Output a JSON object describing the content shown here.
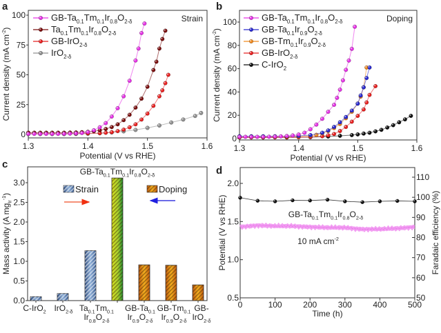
{
  "colors": {
    "magenta": "#e633e6",
    "brown": "#7a0e0e",
    "red": "#e82020",
    "gray": "#909090",
    "blue": "#2a2ad0",
    "orange": "#f08a20",
    "black": "#111111",
    "pink_line": "#f08cf0",
    "strain_arrow": "#f26b4a",
    "doping_arrow": "#3a3ae0"
  },
  "chart_data": [
    {
      "panel": "a",
      "type": "line",
      "annotation": "Strain",
      "xlabel": "Potential (V vs RHE)",
      "ylabel": "Current density (mA cm^{-2})",
      "xlim": [
        1.3,
        1.6
      ],
      "ylim": [
        -5,
        105
      ],
      "xticks": [
        "1.3",
        "1.4",
        "1.5",
        "1.6"
      ],
      "yticks": [
        "0",
        "25",
        "50",
        "75",
        "100"
      ],
      "legend": "top-left",
      "series": [
        {
          "name": "GB-Ta_{0.1}Tm_{0.1}Ir_{0.8}O_{2-δ}",
          "color": "magenta",
          "x": [
            1.3,
            1.31,
            1.32,
            1.33,
            1.34,
            1.35,
            1.36,
            1.37,
            1.38,
            1.39,
            1.4,
            1.41,
            1.42,
            1.43,
            1.44,
            1.45,
            1.46,
            1.47,
            1.48,
            1.485,
            1.49,
            1.495
          ],
          "y": [
            0.5,
            0.5,
            0.5,
            0.5,
            0.5,
            0.5,
            0.6,
            0.7,
            0.9,
            1.2,
            2,
            3.5,
            6,
            9.5,
            15,
            22,
            32,
            45,
            62,
            72,
            85,
            93
          ]
        },
        {
          "name": "Ta_{0.1}Tm_{0.1}Ir_{0.8}O_{2-δ}",
          "color": "brown",
          "x": [
            1.3,
            1.31,
            1.32,
            1.33,
            1.34,
            1.35,
            1.36,
            1.37,
            1.38,
            1.39,
            1.4,
            1.41,
            1.42,
            1.43,
            1.44,
            1.45,
            1.46,
            1.47,
            1.48,
            1.49,
            1.5,
            1.51,
            1.515,
            1.52,
            1.525,
            1.53
          ],
          "y": [
            1.5,
            1.5,
            1.5,
            1.5,
            1.5,
            1.5,
            1.5,
            1.6,
            1.7,
            1.9,
            2.2,
            2.7,
            3.5,
            4.6,
            6.2,
            8.5,
            12,
            16.5,
            22.5,
            30,
            40,
            54,
            61,
            72,
            80,
            87
          ]
        },
        {
          "name": "GB-IrO_{2-δ}",
          "color": "red",
          "x": [
            1.3,
            1.32,
            1.34,
            1.36,
            1.38,
            1.4,
            1.42,
            1.43,
            1.44,
            1.45,
            1.46,
            1.47,
            1.48,
            1.49,
            1.5,
            1.51,
            1.52,
            1.525,
            1.53,
            1.535
          ],
          "y": [
            0.8,
            0.8,
            0.8,
            0.8,
            0.8,
            0.9,
            1.1,
            1.4,
            1.9,
            2.8,
            4,
            6,
            8.5,
            12.5,
            17.5,
            24,
            32,
            37,
            43,
            50
          ]
        },
        {
          "name": "IrO_{2-δ}",
          "color": "gray",
          "x": [
            1.3,
            1.32,
            1.34,
            1.36,
            1.38,
            1.4,
            1.42,
            1.44,
            1.46,
            1.48,
            1.5,
            1.52,
            1.54,
            1.56,
            1.58,
            1.59
          ],
          "y": [
            0.3,
            0.3,
            0.3,
            0.3,
            0.4,
            0.6,
            1.0,
            1.7,
            2.6,
            3.8,
            5.5,
            7.5,
            10,
            12.5,
            15.5,
            18
          ]
        }
      ]
    },
    {
      "panel": "b",
      "type": "line",
      "annotation": "Doping",
      "xlabel": "Potential (V vs RHE)",
      "ylabel": "Current density (mA cm^{-2})",
      "xlim": [
        1.3,
        1.6
      ],
      "ylim": [
        -2,
        108
      ],
      "xticks": [
        "1.3",
        "1.4",
        "1.5",
        "1.6"
      ],
      "yticks": [
        "0",
        "20",
        "40",
        "60",
        "80",
        "100"
      ],
      "legend": "top-left",
      "series": [
        {
          "name": "GB-Ta_{0.1}Tm_{0.1}Ir_{0.8}O_{2-δ}",
          "color": "magenta",
          "x": [
            1.3,
            1.31,
            1.32,
            1.33,
            1.34,
            1.35,
            1.36,
            1.37,
            1.38,
            1.39,
            1.4,
            1.41,
            1.42,
            1.43,
            1.44,
            1.45,
            1.46,
            1.465,
            1.47,
            1.475,
            1.48,
            1.485,
            1.49,
            1.495
          ],
          "y": [
            1.5,
            1.5,
            1.5,
            1.5,
            1.5,
            1.6,
            1.7,
            1.9,
            2.2,
            2.7,
            3.5,
            5,
            8,
            12,
            17,
            23,
            29,
            35,
            42,
            50,
            59,
            67,
            77,
            96
          ]
        },
        {
          "name": "GB-Ta_{0.1}Ir_{0.9}O_{2-δ}",
          "color": "blue",
          "x": [
            1.3,
            1.32,
            1.34,
            1.36,
            1.38,
            1.4,
            1.42,
            1.44,
            1.45,
            1.46,
            1.47,
            1.48,
            1.49,
            1.5,
            1.505,
            1.51,
            1.515,
            1.52
          ],
          "y": [
            2,
            2,
            2,
            2,
            2,
            2.3,
            3,
            5,
            7,
            10,
            14,
            18.5,
            24,
            30,
            37,
            44,
            52,
            61
          ]
        },
        {
          "name": "GB-Tm_{0.1}Ir_{0.9}O_{2-δ}",
          "color": "orange",
          "x": [
            1.3,
            1.32,
            1.34,
            1.36,
            1.38,
            1.4,
            1.42,
            1.43,
            1.44,
            1.45,
            1.46,
            1.47,
            1.48,
            1.49,
            1.5,
            1.505,
            1.51,
            1.515
          ],
          "y": [
            1.5,
            1.5,
            1.5,
            1.5,
            1.6,
            1.8,
            2.4,
            3.2,
            4.5,
            6.5,
            9,
            12.5,
            17.5,
            23,
            30,
            36,
            44,
            61
          ]
        },
        {
          "name": "GB-IrO_{2-δ}",
          "color": "red",
          "x": [
            1.3,
            1.32,
            1.34,
            1.36,
            1.38,
            1.4,
            1.42,
            1.44,
            1.45,
            1.46,
            1.47,
            1.48,
            1.49,
            1.5,
            1.51,
            1.515,
            1.52,
            1.53
          ],
          "y": [
            1,
            1,
            1,
            1,
            1,
            1.1,
            1.4,
            2,
            2.8,
            4,
            6.5,
            10,
            14.5,
            19.5,
            25,
            31,
            37.5,
            45
          ]
        },
        {
          "name": "C-IrO_{2}",
          "color": "black",
          "x": [
            1.3,
            1.34,
            1.38,
            1.42,
            1.45,
            1.47,
            1.49,
            1.5,
            1.51,
            1.52,
            1.53,
            1.54,
            1.55,
            1.56,
            1.57,
            1.58,
            1.59
          ],
          "y": [
            1,
            1,
            1,
            1.2,
            1.8,
            2.4,
            3,
            3.6,
            4.3,
            5,
            6.2,
            7.5,
            9.5,
            11.5,
            14,
            16.5,
            19.5
          ]
        }
      ]
    },
    {
      "panel": "c",
      "type": "bar",
      "ylabel": "Mass activity (A mg_{Ir}^{-1})",
      "ylim": [
        0,
        3.4
      ],
      "yticks": [
        "0.0",
        "0.5",
        "1.0",
        "1.5",
        "2.0",
        "2.5",
        "3.0"
      ],
      "top_label": "GB-Ta_{0.1}Tm_{0.1}Ir_{0.8}O_{2-δ}",
      "legend": [
        {
          "name": "Strain",
          "group": "strain"
        },
        {
          "name": "Doping",
          "group": "doping"
        }
      ],
      "categories": [
        "C-IrO_{2}",
        "IrO_{2-δ}",
        "Ta_{0.1}Tm_{0.1}Ir_{0.8}O_{2-δ}",
        "",
        "GB-Ta_{0.1}Ir_{0.9}O_{2-δ}",
        "GB-Tm_{0.1}Ir_{0.9}O_{2-δ}",
        "GB-IrO_{2-δ}"
      ],
      "groups": [
        "strain",
        "strain",
        "strain",
        "best",
        "doping",
        "doping",
        "doping"
      ],
      "values": [
        0.1,
        0.18,
        1.27,
        3.12,
        0.91,
        0.9,
        0.4
      ]
    },
    {
      "panel": "d",
      "type": "line",
      "xlabel": "Time (h)",
      "ylabel": "Potential (V vs RHE)",
      "y2label": "Faradaic efficiency (%)",
      "xlim": [
        0,
        500
      ],
      "ylim": [
        0.5,
        2.2
      ],
      "y2lim": [
        50,
        115
      ],
      "xticks": [
        "0",
        "100",
        "200",
        "300",
        "400",
        "500"
      ],
      "yticks": [
        "0.5",
        "1.0",
        "1.5",
        "2.0"
      ],
      "y2ticks": [
        "50",
        "60",
        "70",
        "80",
        "90",
        "100",
        "110"
      ],
      "annotations": [
        "GB-Ta_{0.1}Tm_{0.1}Ir_{0.8}O_{2-δ}",
        "10 mA cm^{-2}"
      ],
      "series": [
        {
          "axis": "left",
          "color": "pink_line",
          "x": [
            0,
            50,
            100,
            150,
            200,
            250,
            300,
            350,
            400,
            450,
            500
          ],
          "y": [
            1.43,
            1.45,
            1.44,
            1.44,
            1.43,
            1.42,
            1.42,
            1.4,
            1.4,
            1.41,
            1.43
          ]
        },
        {
          "axis": "right",
          "color": "black",
          "x": [
            0,
            50,
            100,
            150,
            200,
            250,
            300,
            350,
            400,
            450,
            500
          ],
          "y": [
            99.8,
            98.3,
            98.0,
            98.5,
            98.4,
            98.8,
            98.0,
            97.6,
            98.0,
            98.2,
            98.0
          ]
        }
      ]
    }
  ],
  "panel_labels": [
    "a",
    "b",
    "c",
    "d"
  ]
}
